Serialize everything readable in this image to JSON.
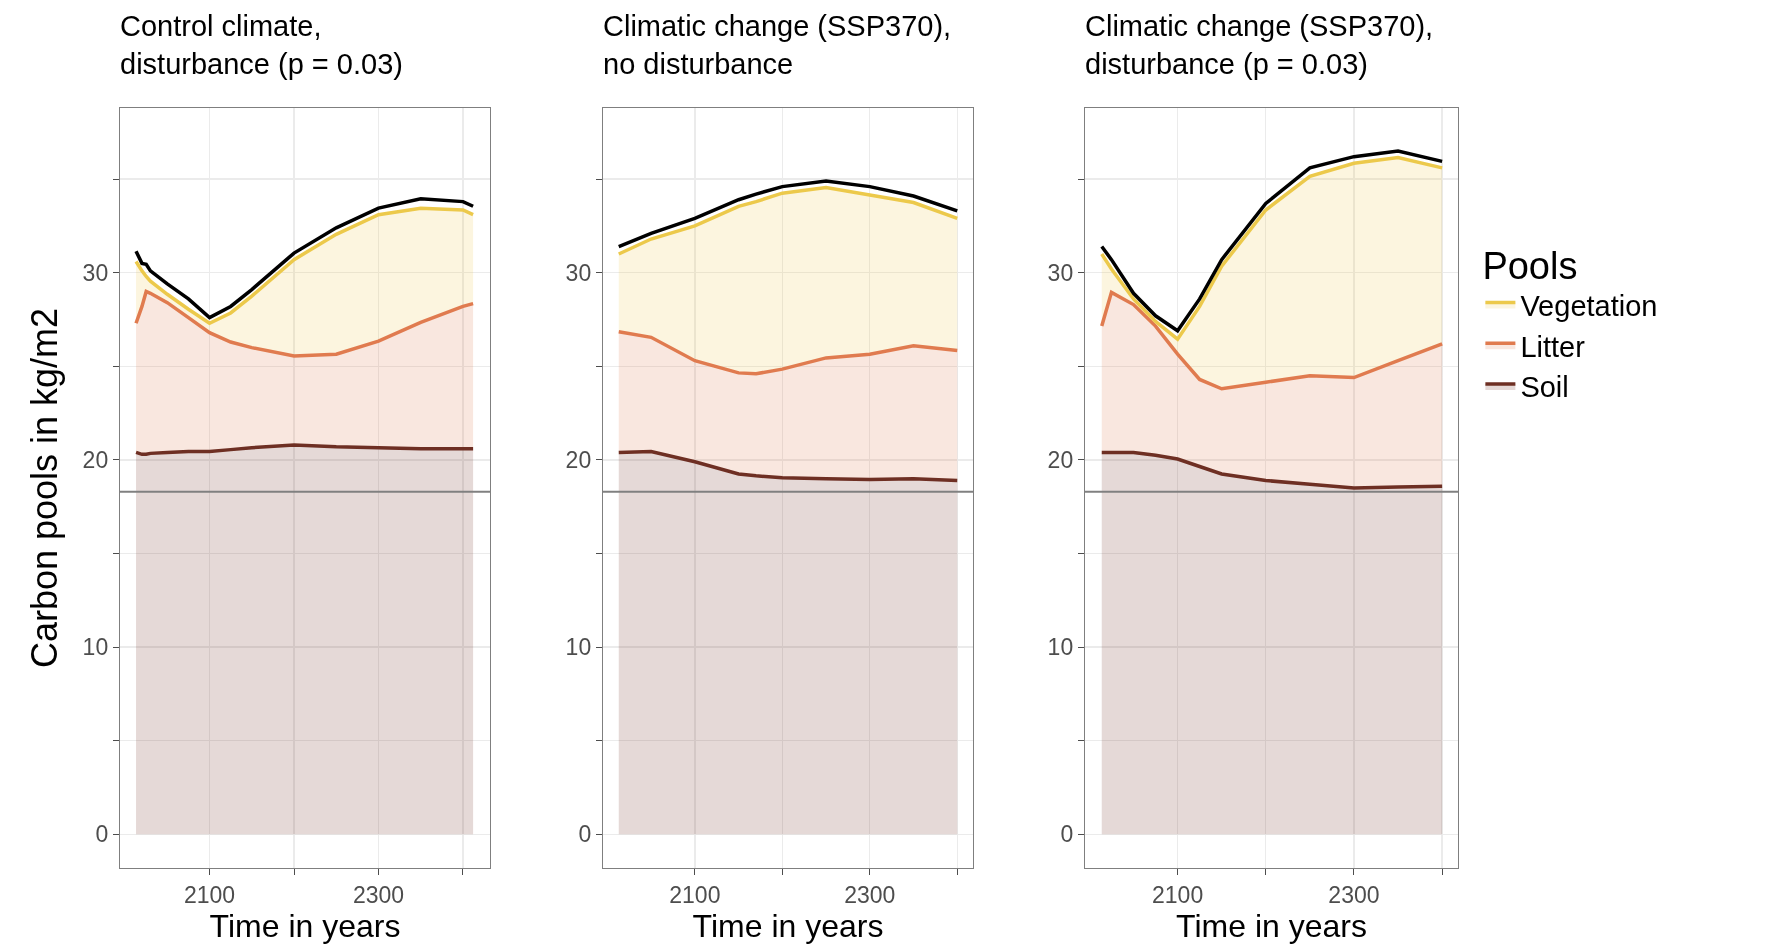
{
  "chart_data": [
    {
      "type": "area",
      "title": "Control climate, disturbance (p = 0.03)",
      "xlabel": "Time in years",
      "ylabel": "Carbon pools in kg/m2",
      "stacked": true,
      "grid": true,
      "legend": false,
      "x": [
        "2013",
        "2020",
        "2025",
        "2030",
        "2050",
        "2075",
        "2100",
        "2125",
        "2150",
        "2200",
        "2250",
        "2300",
        "2350",
        "2400",
        "2412"
      ],
      "series": [
        {
          "color": "#6e2f23",
          "values": [
            20.4,
            20.3,
            20.3,
            20.35,
            20.4,
            20.45,
            20.45,
            20.55,
            20.65,
            20.8,
            20.7,
            20.65,
            20.6,
            20.6,
            20.6
          ]
        },
        {
          "color": "#e07b4f",
          "values": [
            6.9,
            7.9,
            8.7,
            8.55,
            8.0,
            7.15,
            6.35,
            5.75,
            5.35,
            4.75,
            4.95,
            5.7,
            6.75,
            7.6,
            7.75
          ]
        },
        {
          "color": "#ecc94b",
          "values": [
            3.3,
            1.9,
            0.8,
            0.65,
            0.45,
            0.45,
            0.5,
            1.55,
            2.75,
            5.15,
            6.4,
            6.75,
            6.1,
            5.15,
            4.75
          ]
        },
        {
          "type": "line",
          "color": "#000000",
          "values": [
            31.15,
            30.5,
            30.45,
            30.1,
            29.4,
            28.6,
            27.6,
            28.2,
            29.1,
            31.05,
            32.4,
            33.45,
            33.95,
            33.8,
            33.55
          ]
        }
      ],
      "xlim": [
        "1994",
        "2432"
      ],
      "ylim": [
        -1.8,
        38.8
      ],
      "xticks": [
        "2100",
        {
          "value": "2200",
          "label": null
        },
        "2300",
        {
          "value": "2400",
          "label": null
        }
      ],
      "yticks": [
        0,
        {
          "value": 5,
          "label": null
        },
        10,
        {
          "value": 15,
          "label": null
        },
        20,
        {
          "value": 25,
          "label": null
        },
        30,
        {
          "value": 35,
          "label": null
        }
      ],
      "ref_lines": [
        {
          "axis": "y",
          "value": 18.3,
          "color": "#808080"
        }
      ]
    },
    {
      "type": "area",
      "title": "Climatic change (SSP370), no disturbance",
      "xlabel": "Time in years",
      "stacked": true,
      "grid": true,
      "legend": false,
      "x": [
        "2013",
        "2050",
        "2100",
        "2150",
        "2170",
        "2200",
        "2250",
        "2300",
        "2350",
        "2400"
      ],
      "series": [
        {
          "color": "#6e2f23",
          "values": [
            20.4,
            20.45,
            19.9,
            19.25,
            19.15,
            19.05,
            19.0,
            18.95,
            19.0,
            18.9
          ]
        },
        {
          "color": "#e07b4f",
          "values": [
            6.45,
            6.1,
            5.4,
            5.4,
            5.45,
            5.8,
            6.45,
            6.7,
            7.1,
            6.95
          ]
        },
        {
          "color": "#ecc94b",
          "values": [
            4.15,
            5.25,
            7.2,
            8.9,
            9.2,
            9.4,
            9.1,
            8.5,
            7.65,
            7.05
          ]
        },
        {
          "type": "line",
          "color": "#000000",
          "values": [
            31.4,
            32.1,
            32.9,
            33.9,
            34.2,
            34.6,
            34.9,
            34.6,
            34.1,
            33.3
          ]
        }
      ],
      "xlim": [
        "1995",
        "2418"
      ],
      "ylim": [
        -1.8,
        38.8
      ],
      "xticks": [
        "2100",
        {
          "value": "2200",
          "label": null
        },
        "2300",
        {
          "value": "2400",
          "label": null
        }
      ],
      "yticks": [
        0,
        {
          "value": 5,
          "label": null
        },
        10,
        {
          "value": 15,
          "label": null
        },
        20,
        {
          "value": 25,
          "label": null
        },
        30,
        {
          "value": 35,
          "label": null
        }
      ],
      "ref_lines": [
        {
          "axis": "y",
          "value": 18.3,
          "color": "#808080"
        }
      ]
    },
    {
      "type": "area",
      "title": "Climatic change (SSP370), disturbance (p = 0.03)",
      "xlabel": "Time in years",
      "legend_title": "Pools",
      "stacked": true,
      "grid": true,
      "legend": "right",
      "x": [
        "2014",
        "2025",
        "2050",
        "2075",
        "2100",
        "2125",
        "2150",
        "2200",
        "2250",
        "2300",
        "2350",
        "2400"
      ],
      "series": [
        {
          "name": "Soil",
          "color": "#6e2f23",
          "values": [
            20.4,
            20.4,
            20.4,
            20.25,
            20.05,
            19.65,
            19.25,
            18.9,
            18.7,
            18.5,
            18.55,
            18.6
          ]
        },
        {
          "name": "Litter",
          "color": "#e07b4f",
          "values": [
            6.75,
            8.55,
            7.9,
            6.9,
            5.6,
            4.65,
            4.55,
            5.25,
            5.8,
            5.9,
            6.75,
            7.6
          ]
        },
        {
          "name": "Vegetation",
          "color": "#ecc94b",
          "values": [
            3.85,
            1.25,
            0.3,
            0.25,
            0.8,
            3.9,
            6.55,
            9.2,
            10.65,
            11.45,
            10.85,
            9.4
          ]
        },
        {
          "type": "line",
          "color": "#000000",
          "values": [
            31.4,
            30.7,
            28.9,
            27.7,
            26.9,
            28.6,
            30.7,
            33.7,
            35.6,
            36.2,
            36.5,
            35.95
          ]
        }
      ],
      "xlim": [
        "1995",
        "2418"
      ],
      "ylim": [
        -1.8,
        38.8
      ],
      "xticks": [
        "2100",
        {
          "value": "2200",
          "label": null
        },
        "2300",
        {
          "value": "2400",
          "label": null
        }
      ],
      "yticks": [
        0,
        {
          "value": 5,
          "label": null
        },
        10,
        {
          "value": 15,
          "label": null
        },
        20,
        {
          "value": 25,
          "label": null
        },
        30,
        {
          "value": 35,
          "label": null
        }
      ],
      "ref_lines": [
        {
          "axis": "y",
          "value": 18.3,
          "color": "#808080"
        }
      ]
    }
  ]
}
